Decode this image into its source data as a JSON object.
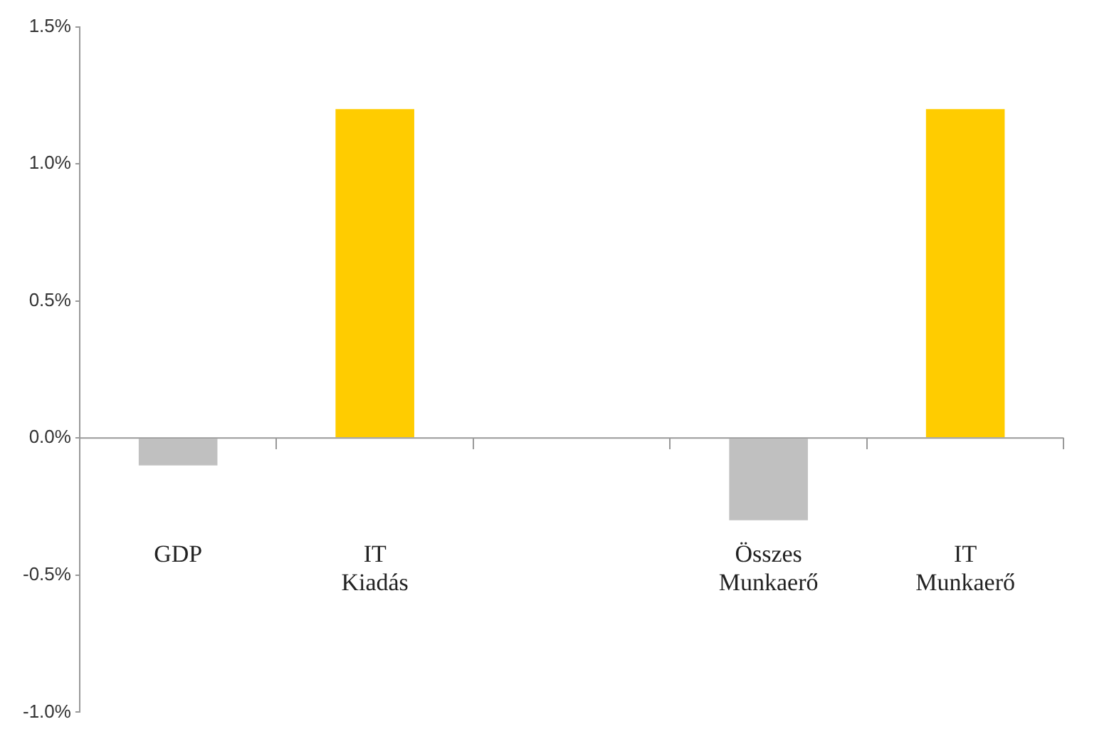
{
  "chart_data": {
    "type": "bar",
    "categories": [
      "GDP",
      "IT Kiadás",
      null,
      "Összes Munkaerő",
      "IT Munkaerő"
    ],
    "values": [
      -0.1,
      1.2,
      null,
      -0.3,
      1.2
    ],
    "colors": [
      "#c0c0c0",
      "#ffcc00",
      null,
      "#c0c0c0",
      "#ffcc00"
    ],
    "ylim": [
      -1.0,
      1.5
    ],
    "yticks": [
      {
        "value": -1.0,
        "label": "-1.0%"
      },
      {
        "value": -0.5,
        "label": "-0.5%"
      },
      {
        "value": 0,
        "label": "0.0%"
      },
      {
        "value": 0.5,
        "label": "0.5%"
      },
      {
        "value": 1.0,
        "label": "1.0%"
      },
      {
        "value": 1.5,
        "label": "1.5%"
      }
    ],
    "ref_lines": [
      {
        "axis": "y",
        "value": 0,
        "color": "#999999"
      }
    ],
    "grid": false,
    "legend": false
  }
}
